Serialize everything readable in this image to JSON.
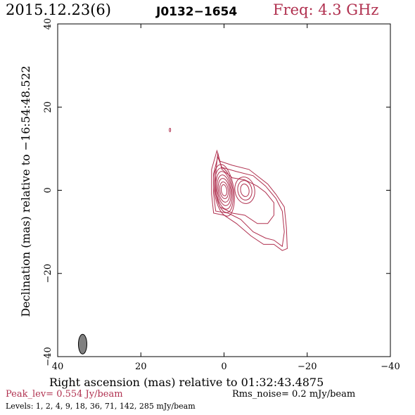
{
  "header": {
    "date_epoch": "2015.12.23(6)",
    "source": "J0132−1654",
    "freq": "Freq: 4.3 GHz"
  },
  "axes": {
    "xlabel": "Right ascension (mas) relative to 01:32:43.4875",
    "ylabel": "Declination (mas) relative to −16:54:48.522",
    "xlim": [
      40,
      -40
    ],
    "ylim": [
      -40,
      40
    ],
    "xticks": [
      "40",
      "20",
      "0",
      "−20",
      "−40"
    ],
    "yticks": [
      "−40",
      "−20",
      "0",
      "20",
      "40"
    ]
  },
  "footer": {
    "peak": "Peak_lev=  0.554 Jy/beam",
    "rms": "Rms_noise=  0.2 mJy/beam",
    "levels": "Levels:   1,   2,   4,   9,  18,  36,  71, 142, 285 mJy/beam"
  },
  "colors": {
    "contour": "#b0304f",
    "beam_fill": "#808080",
    "axis": "#000000"
  },
  "map": {
    "beam": {
      "x_mas": 34,
      "y_mas": -37
    },
    "core_mas": {
      "x": 0,
      "y": 0
    },
    "knot_mas": {
      "x": -5,
      "y": 0
    },
    "spot_mas": {
      "x": 13,
      "y": 14.5
    }
  }
}
